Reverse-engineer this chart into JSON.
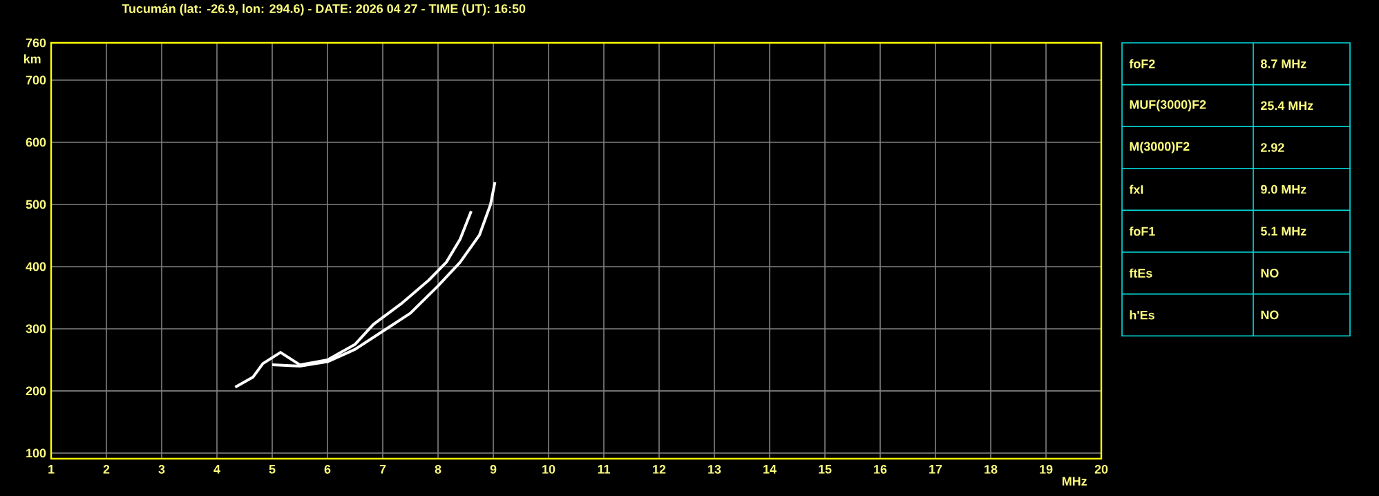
{
  "chart_data": [
    {
      "type": "line",
      "title": "Tucumán (lat: -26.9, lon: 294.6) - DATE: 2026 04 27 - TIME (UT): 16:50",
      "xlabel": "MHz",
      "ylabel": "km",
      "xlim": [
        1,
        20
      ],
      "ylim": [
        91,
        760
      ],
      "xticks": [
        1,
        2,
        3,
        4,
        5,
        6,
        7,
        8,
        9,
        10,
        11,
        12,
        13,
        14,
        15,
        16,
        17,
        18,
        19,
        20
      ],
      "yticks": [
        100,
        200,
        300,
        400,
        500,
        600,
        700,
        760
      ],
      "grid": true,
      "marker": "none",
      "line_style": "solid",
      "series": [
        {
          "color": "#ffffff",
          "x": [
            4.33,
            4.65,
            4.83,
            5.15,
            5.5,
            6.0,
            6.5,
            6.83,
            7.33,
            7.83,
            8.15,
            8.4,
            8.6
          ],
          "values": [
            206,
            222,
            244,
            262,
            242,
            250,
            275,
            307,
            340,
            378,
            407,
            444,
            489
          ]
        },
        {
          "color": "#ffffff",
          "x": [
            5.0,
            5.5,
            6.0,
            6.5,
            7.0,
            7.5,
            8.0,
            8.4,
            8.75,
            8.95,
            9.03
          ],
          "values": [
            242,
            240,
            247,
            267,
            296,
            325,
            369,
            407,
            451,
            500,
            536
          ]
        }
      ]
    },
    {
      "type": "other",
      "categories": [
        "foF2",
        "MUF(3000)F2",
        "M(3000)F2",
        "fxI",
        "foF1",
        "ftEs",
        "h'Es"
      ],
      "annotations": [
        "8.7 MHz",
        "25.4 MHz",
        "2.92",
        "9.0 MHz",
        "5.1 MHz",
        "NO",
        "NO"
      ]
    }
  ]
}
